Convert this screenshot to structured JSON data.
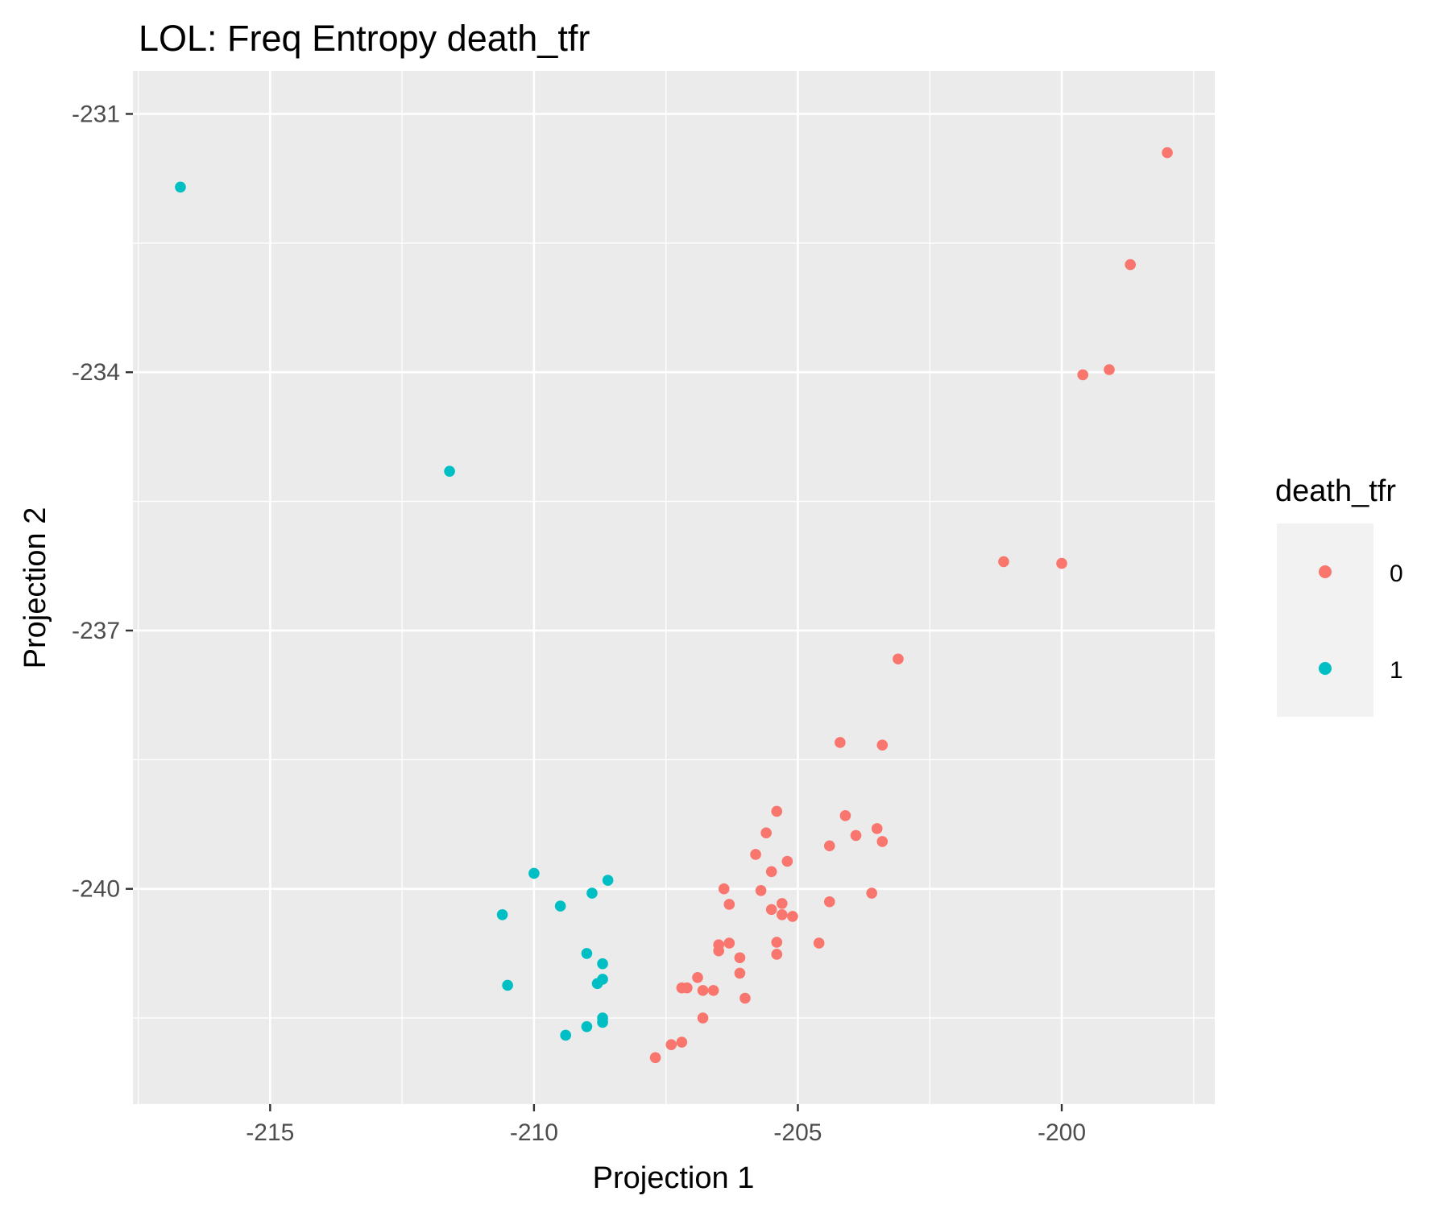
{
  "chart_data": {
    "type": "scatter",
    "title": "LOL: Freq Entropy death_tfr",
    "xlabel": "Projection 1",
    "ylabel": "Projection 2",
    "xlim": [
      -217.6,
      -197.1
    ],
    "ylim": [
      -242.5,
      -230.5
    ],
    "x_ticks": [
      -215,
      -210,
      -205,
      -200
    ],
    "x_tick_labels": [
      "-215",
      "-210",
      "-205",
      "-200"
    ],
    "y_ticks": [
      -231,
      -234,
      -237,
      -240
    ],
    "y_tick_labels": [
      "-231",
      "-234",
      "-237",
      "-240"
    ],
    "grid": true,
    "legend": {
      "title": "death_tfr",
      "position": "right",
      "entries": [
        {
          "label": "0",
          "color": "#F8766D"
        },
        {
          "label": "1",
          "color": "#00BFC4"
        }
      ]
    },
    "series": [
      {
        "name": "0",
        "color": "#F8766D",
        "points": [
          [
            -198.0,
            -231.45
          ],
          [
            -198.7,
            -232.75
          ],
          [
            -199.6,
            -234.03
          ],
          [
            -199.1,
            -233.97
          ],
          [
            -201.1,
            -236.2
          ],
          [
            -200.0,
            -236.22
          ],
          [
            -203.1,
            -237.33
          ],
          [
            -204.2,
            -238.3
          ],
          [
            -203.4,
            -238.33
          ],
          [
            -205.4,
            -239.1
          ],
          [
            -204.1,
            -239.15
          ],
          [
            -203.5,
            -239.3
          ],
          [
            -205.6,
            -239.35
          ],
          [
            -203.9,
            -239.38
          ],
          [
            -204.4,
            -239.5
          ],
          [
            -203.4,
            -239.45
          ],
          [
            -205.8,
            -239.6
          ],
          [
            -205.2,
            -239.68
          ],
          [
            -205.5,
            -239.8
          ],
          [
            -206.4,
            -240.0
          ],
          [
            -205.7,
            -240.02
          ],
          [
            -203.6,
            -240.05
          ],
          [
            -204.4,
            -240.15
          ],
          [
            -206.3,
            -240.18
          ],
          [
            -205.3,
            -240.17
          ],
          [
            -205.5,
            -240.24
          ],
          [
            -205.3,
            -240.3
          ],
          [
            -205.1,
            -240.32
          ],
          [
            -204.6,
            -240.63
          ],
          [
            -205.4,
            -240.62
          ],
          [
            -206.3,
            -240.63
          ],
          [
            -206.5,
            -240.65
          ],
          [
            -206.5,
            -240.72
          ],
          [
            -205.4,
            -240.76
          ],
          [
            -206.1,
            -240.8
          ],
          [
            -206.1,
            -240.98
          ],
          [
            -206.9,
            -241.03
          ],
          [
            -207.2,
            -241.15
          ],
          [
            -207.1,
            -241.15
          ],
          [
            -206.8,
            -241.18
          ],
          [
            -206.6,
            -241.18
          ],
          [
            -206.0,
            -241.27
          ],
          [
            -206.8,
            -241.5
          ],
          [
            -207.2,
            -241.78
          ],
          [
            -207.4,
            -241.81
          ],
          [
            -207.7,
            -241.96
          ]
        ]
      },
      {
        "name": "1",
        "color": "#00BFC4",
        "points": [
          [
            -216.7,
            -231.85
          ],
          [
            -211.6,
            -235.15
          ],
          [
            -210.0,
            -239.82
          ],
          [
            -208.6,
            -239.9
          ],
          [
            -208.9,
            -240.05
          ],
          [
            -209.5,
            -240.2
          ],
          [
            -210.6,
            -240.3
          ],
          [
            -209.0,
            -240.75
          ],
          [
            -208.7,
            -240.87
          ],
          [
            -208.7,
            -241.05
          ],
          [
            -208.8,
            -241.1
          ],
          [
            -210.5,
            -241.12
          ],
          [
            -208.7,
            -241.5
          ],
          [
            -208.7,
            -241.55
          ],
          [
            -209.0,
            -241.6
          ],
          [
            -209.4,
            -241.7
          ]
        ]
      }
    ]
  }
}
